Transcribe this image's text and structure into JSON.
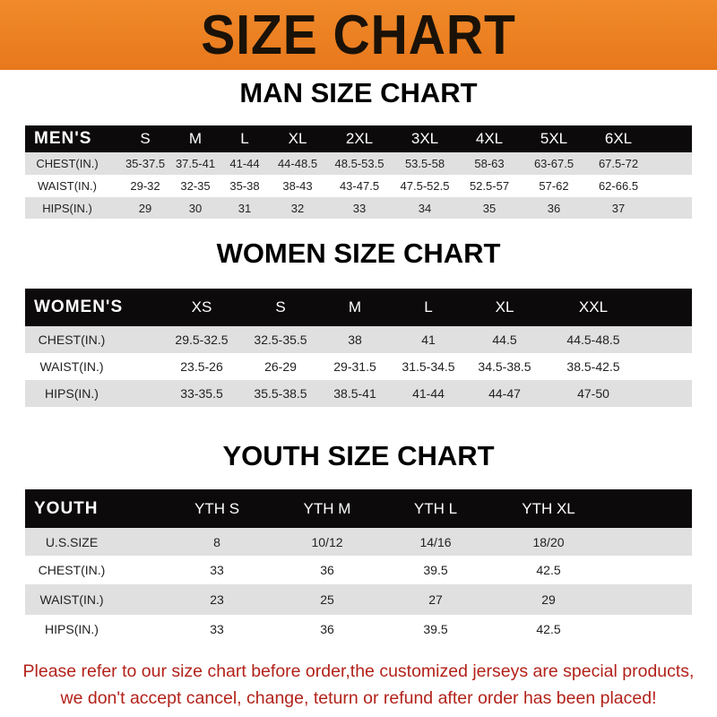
{
  "banner_title": "SIZE CHART",
  "men": {
    "title": "MAN SIZE CHART",
    "header": [
      "MEN'S",
      "S",
      "M",
      "L",
      "XL",
      "2XL",
      "3XL",
      "4XL",
      "5XL",
      "6XL"
    ],
    "rows": [
      [
        "CHEST(IN.)",
        "35-37.5",
        "37.5-41",
        "41-44",
        "44-48.5",
        "48.5-53.5",
        "53.5-58",
        "58-63",
        "63-67.5",
        "67.5-72"
      ],
      [
        "WAIST(IN.)",
        "29-32",
        "32-35",
        "35-38",
        "38-43",
        "43-47.5",
        "47.5-52.5",
        "52.5-57",
        "57-62",
        "62-66.5"
      ],
      [
        "HIPS(IN.)",
        "29",
        "30",
        "31",
        "32",
        "33",
        "34",
        "35",
        "36",
        "37"
      ]
    ]
  },
  "women": {
    "title": "WOMEN SIZE CHART",
    "header": [
      "WOMEN'S",
      "XS",
      "S",
      "M",
      "L",
      "XL",
      "XXL"
    ],
    "rows": [
      [
        "CHEST(IN.)",
        "29.5-32.5",
        "32.5-35.5",
        "38",
        "41",
        "44.5",
        "44.5-48.5"
      ],
      [
        "WAIST(IN.)",
        "23.5-26",
        "26-29",
        "29-31.5",
        "31.5-34.5",
        "34.5-38.5",
        "38.5-42.5"
      ],
      [
        "HIPS(IN.)",
        "33-35.5",
        "35.5-38.5",
        "38.5-41",
        "41-44",
        "44-47",
        "47-50"
      ]
    ]
  },
  "youth": {
    "title": "YOUTH SIZE CHART",
    "header": [
      "YOUTH",
      "YTH S",
      "YTH M",
      "YTH L",
      "YTH XL"
    ],
    "rows": [
      [
        "U.S.SIZE",
        "8",
        "10/12",
        "14/16",
        "18/20"
      ],
      [
        "CHEST(IN.)",
        "33",
        "36",
        "39.5",
        "42.5"
      ],
      [
        "WAIST(IN.)",
        "23",
        "25",
        "27",
        "29"
      ],
      [
        "HIPS(IN.)",
        "33",
        "36",
        "39.5",
        "42.5"
      ]
    ]
  },
  "footer": {
    "line1": "Please refer to our size chart before order,the customized jerseys are special products,",
    "line2": "we don't accept cancel, change, teturn or refund after order has been placed!"
  },
  "colors": {
    "banner": "#ee841f",
    "header_row": "#0c0a0a",
    "stripe": "#e0e0e0",
    "notice": "#b3221a"
  }
}
